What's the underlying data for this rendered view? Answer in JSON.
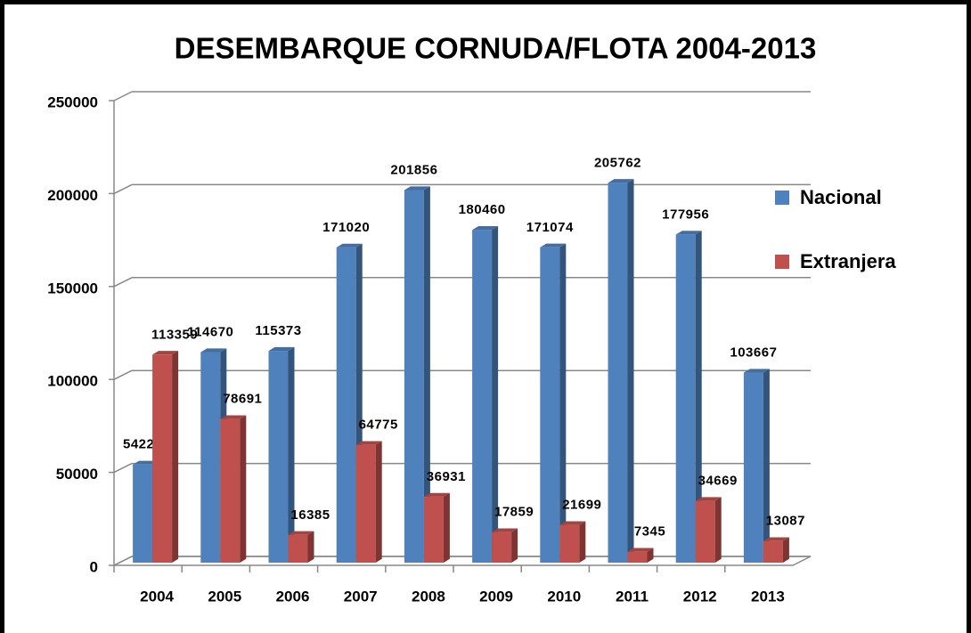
{
  "chart_data": {
    "type": "bar3d",
    "title": "DESEMBARQUE CORNUDA/FLOTA 2004-2013",
    "categories": [
      "2004",
      "2005",
      "2006",
      "2007",
      "2008",
      "2009",
      "2010",
      "2011",
      "2012",
      "2013"
    ],
    "series": [
      {
        "name": "Nacional",
        "color": "#4f81bd",
        "values": [
          54225,
          114670,
          115373,
          171020,
          201856,
          180460,
          171074,
          205762,
          177956,
          103667
        ]
      },
      {
        "name": "Extranjera",
        "color": "#c0504d",
        "values": [
          113359,
          78691,
          16385,
          64775,
          36931,
          17859,
          21699,
          7345,
          34669,
          13087
        ]
      }
    ],
    "ylim": [
      0,
      250000
    ],
    "yticks": [
      0,
      50000,
      100000,
      150000,
      200000,
      250000
    ],
    "grid": true,
    "legend": "right"
  }
}
